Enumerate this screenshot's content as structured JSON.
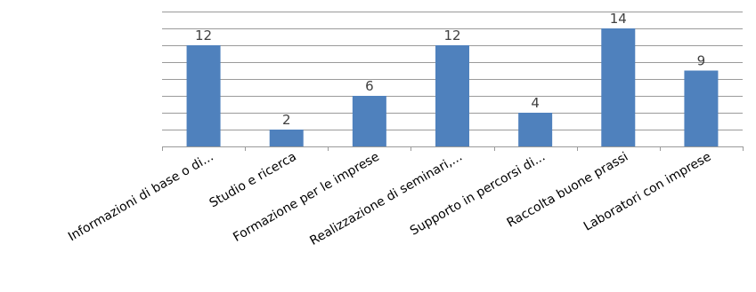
{
  "chart_data": {
    "type": "bar",
    "title": "",
    "xlabel": "",
    "ylabel": "",
    "categories": [
      "Informazioni di base o di...",
      "Studio e ricerca",
      "Formazione per le imprese",
      "Realizzazione di seminari,...",
      "Supporto in percorsi di...",
      "Raccolta buone prassi",
      "Laboratori con imprese"
    ],
    "values": [
      12,
      2,
      6,
      12,
      4,
      14,
      9
    ],
    "data_labels": [
      "12",
      "2",
      "6",
      "12",
      "4",
      "14",
      "9"
    ],
    "ylim": [
      0,
      16
    ],
    "y_step": 2,
    "grid": true,
    "legend": "none",
    "bar_color": "#4f81bd"
  }
}
